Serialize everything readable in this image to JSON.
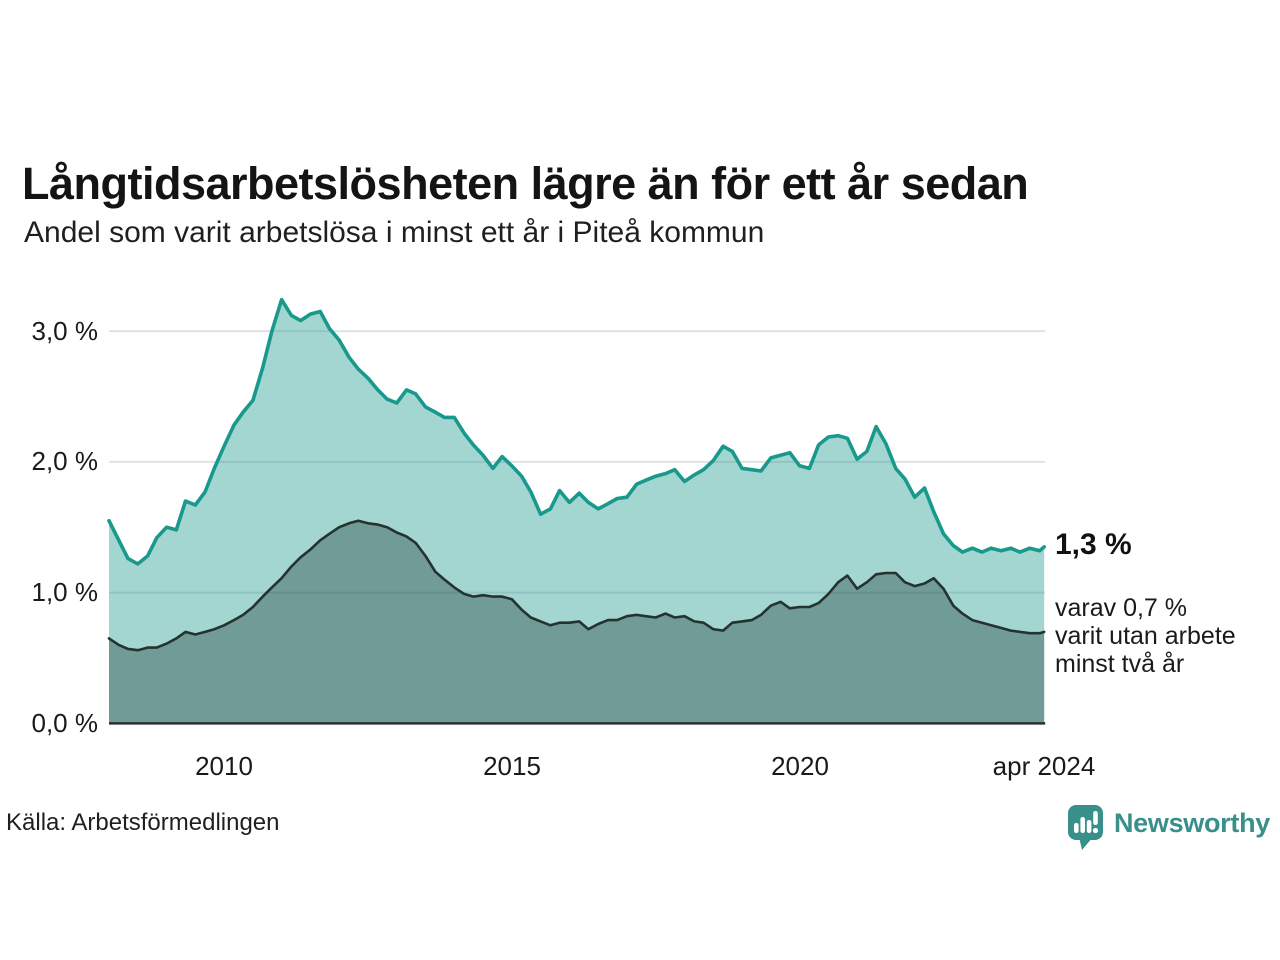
{
  "header": {
    "title": "Långtidsarbetslösheten lägre än för ett år sedan",
    "subtitle": "Andel som varit arbetslösa i minst ett år i Piteå kommun"
  },
  "annotations": {
    "latest_value": "1,3 %",
    "note_lines": [
      "varav 0,7 %",
      "varit utan arbete",
      "minst två år"
    ]
  },
  "footer": {
    "source": "Källa: Arbetsförmedlingen",
    "brand": "Newsworthy"
  },
  "colors": {
    "accent_line": "#18998b",
    "accent_fill": "rgba(26,153,139,0.40)",
    "dark_line": "#24332f",
    "dark_fill": "rgba(20,45,42,0.35)",
    "grid": "#e2e2e6",
    "baseline": "#2e2e2e",
    "brand": "#39908a",
    "text": "#1a1a1a"
  },
  "chart_data": {
    "type": "area",
    "title": "Långtidsarbetslösheten lägre än för ett år sedan",
    "subtitle": "Andel som varit arbetslösa i minst ett år i Piteå kommun",
    "unit": "%",
    "ylim": [
      0,
      3.4
    ],
    "grid": true,
    "legend_position": "none",
    "yticks": [
      {
        "value": 3,
        "label": "3,0 %"
      },
      {
        "value": 2,
        "label": "2,0 %"
      },
      {
        "value": 1,
        "label": "1,0 %"
      },
      {
        "value": 0,
        "label": "0,0 %"
      }
    ],
    "xticks": [
      {
        "year": 2010,
        "label": "2010"
      },
      {
        "year": 2015,
        "label": "2015"
      },
      {
        "year": 2020,
        "label": "2020"
      },
      {
        "year": 2024.25,
        "label": "apr 2024"
      }
    ],
    "x_years": [
      2008.0,
      2008.17,
      2008.33,
      2008.5,
      2008.67,
      2008.83,
      2009.0,
      2009.17,
      2009.33,
      2009.5,
      2009.67,
      2009.83,
      2010.0,
      2010.17,
      2010.33,
      2010.5,
      2010.67,
      2010.83,
      2011.0,
      2011.17,
      2011.33,
      2011.5,
      2011.67,
      2011.83,
      2012.0,
      2012.17,
      2012.33,
      2012.5,
      2012.67,
      2012.83,
      2013.0,
      2013.17,
      2013.33,
      2013.5,
      2013.67,
      2013.83,
      2014.0,
      2014.17,
      2014.33,
      2014.5,
      2014.67,
      2014.83,
      2015.0,
      2015.17,
      2015.33,
      2015.5,
      2015.67,
      2015.83,
      2016.0,
      2016.17,
      2016.33,
      2016.5,
      2016.67,
      2016.83,
      2017.0,
      2017.17,
      2017.33,
      2017.5,
      2017.67,
      2017.83,
      2018.0,
      2018.17,
      2018.33,
      2018.5,
      2018.67,
      2018.83,
      2019.0,
      2019.17,
      2019.33,
      2019.5,
      2019.67,
      2019.83,
      2020.0,
      2020.17,
      2020.33,
      2020.5,
      2020.67,
      2020.83,
      2021.0,
      2021.17,
      2021.33,
      2021.5,
      2021.67,
      2021.83,
      2022.0,
      2022.17,
      2022.33,
      2022.5,
      2022.67,
      2022.83,
      2023.0,
      2023.17,
      2023.33,
      2023.5,
      2023.67,
      2023.83,
      2024.0,
      2024.17,
      2024.25
    ],
    "series": [
      {
        "name": "Arbetslösa minst ett år",
        "final_label": "1,3 %",
        "values": [
          1.55,
          1.4,
          1.26,
          1.22,
          1.28,
          1.42,
          1.5,
          1.48,
          1.7,
          1.67,
          1.77,
          1.95,
          2.12,
          2.28,
          2.38,
          2.47,
          2.72,
          3.0,
          3.24,
          3.12,
          3.08,
          3.13,
          3.15,
          3.02,
          2.93,
          2.8,
          2.71,
          2.64,
          2.55,
          2.48,
          2.45,
          2.55,
          2.52,
          2.42,
          2.38,
          2.34,
          2.34,
          2.22,
          2.13,
          2.05,
          1.95,
          2.04,
          1.97,
          1.89,
          1.77,
          1.6,
          1.64,
          1.78,
          1.69,
          1.76,
          1.69,
          1.64,
          1.68,
          1.72,
          1.73,
          1.83,
          1.86,
          1.89,
          1.91,
          1.94,
          1.85,
          1.9,
          1.94,
          2.01,
          2.12,
          2.08,
          1.95,
          1.94,
          1.93,
          2.03,
          2.05,
          2.07,
          1.97,
          1.95,
          2.13,
          2.19,
          2.2,
          2.18,
          2.02,
          2.08,
          2.27,
          2.14,
          1.95,
          1.87,
          1.73,
          1.8,
          1.62,
          1.45,
          1.36,
          1.31,
          1.34,
          1.31,
          1.34,
          1.32,
          1.34,
          1.31,
          1.34,
          1.32,
          1.35
        ]
      },
      {
        "name": "Varit utan arbete minst två år",
        "final_label": "0,7 %",
        "values": [
          0.65,
          0.6,
          0.57,
          0.56,
          0.58,
          0.58,
          0.61,
          0.65,
          0.7,
          0.68,
          0.7,
          0.72,
          0.75,
          0.79,
          0.83,
          0.89,
          0.97,
          1.04,
          1.11,
          1.2,
          1.27,
          1.33,
          1.4,
          1.45,
          1.5,
          1.53,
          1.55,
          1.53,
          1.52,
          1.5,
          1.46,
          1.43,
          1.38,
          1.28,
          1.16,
          1.1,
          1.04,
          0.99,
          0.97,
          0.98,
          0.97,
          0.97,
          0.95,
          0.87,
          0.81,
          0.78,
          0.75,
          0.77,
          0.77,
          0.78,
          0.72,
          0.76,
          0.79,
          0.79,
          0.82,
          0.83,
          0.82,
          0.81,
          0.84,
          0.81,
          0.82,
          0.78,
          0.77,
          0.72,
          0.71,
          0.77,
          0.78,
          0.79,
          0.83,
          0.9,
          0.93,
          0.88,
          0.89,
          0.89,
          0.92,
          0.99,
          1.08,
          1.13,
          1.03,
          1.08,
          1.14,
          1.15,
          1.15,
          1.08,
          1.05,
          1.07,
          1.11,
          1.03,
          0.9,
          0.84,
          0.79,
          0.77,
          0.75,
          0.73,
          0.71,
          0.7,
          0.69,
          0.69,
          0.7
        ]
      }
    ]
  }
}
